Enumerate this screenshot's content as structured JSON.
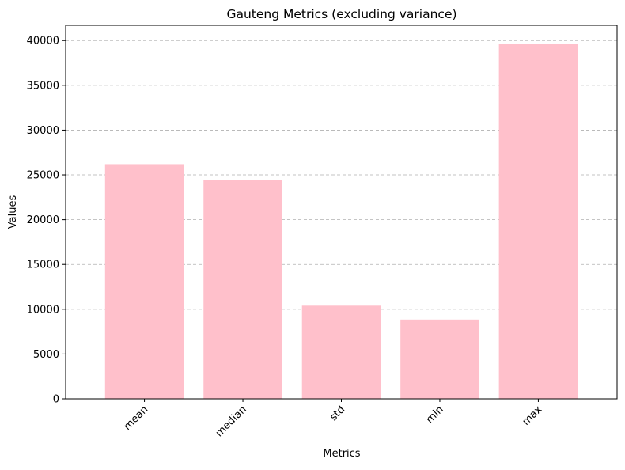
{
  "chart_data": {
    "type": "bar",
    "title": "Gauteng Metrics (excluding variance)",
    "xlabel": "Metrics",
    "ylabel": "Values",
    "categories": [
      "mean",
      "median",
      "std",
      "min",
      "max"
    ],
    "values": [
      26200,
      24400,
      10400,
      8850,
      39650
    ],
    "ylim": [
      0,
      41700
    ],
    "yticks": [
      0,
      5000,
      10000,
      15000,
      20000,
      25000,
      30000,
      35000,
      40000
    ],
    "grid": "y-dashed",
    "legend": "none",
    "xtick_rotation_deg": 45,
    "bar_color": "#ffc0cb"
  }
}
